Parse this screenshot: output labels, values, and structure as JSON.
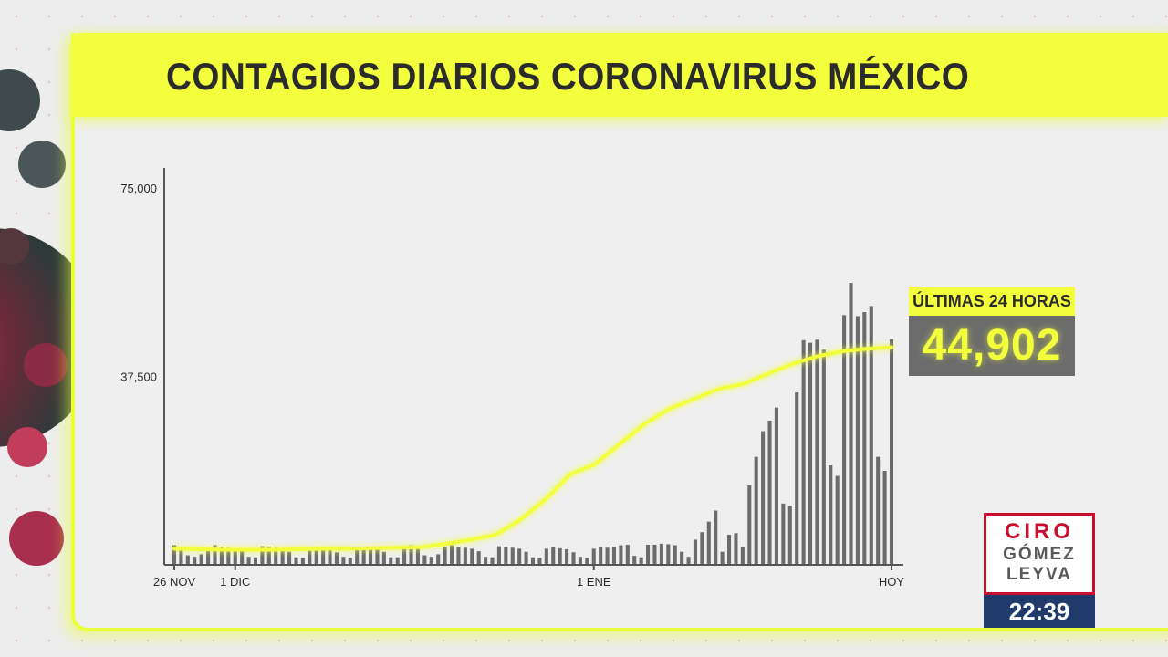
{
  "header": {
    "title": "CONTAGIOS DIARIOS CORONAVIRUS MÉXICO"
  },
  "callout": {
    "label": "ÚLTIMAS 24 HORAS",
    "value": "44,902"
  },
  "logo": {
    "line1": "CIRO",
    "line2": "GÓMEZ",
    "line3": "LEYVA"
  },
  "clock": {
    "time": "22:39"
  },
  "colors": {
    "accent": "#f3ff3c",
    "bars": "#6b6b6b",
    "brand_red": "#c8102e",
    "clock_bg": "#1f3a6b"
  },
  "icons": {
    "decoration": "coronavirus-icon"
  },
  "chart_data": {
    "type": "bar",
    "title": "CONTAGIOS DIARIOS CORONAVIRUS MÉXICO",
    "xlabel": "",
    "ylabel": "",
    "ylim": [
      0,
      75000
    ],
    "y_ticks": [
      {
        "value": 75000,
        "label": "75,000"
      },
      {
        "value": 37500,
        "label": "37,500"
      }
    ],
    "x_ticks": [
      {
        "index": 0,
        "label": "26 NOV"
      },
      {
        "index": 9,
        "label": "1 DIC"
      },
      {
        "index": 62,
        "label": "1 ENE"
      },
      {
        "index": 106,
        "label": "HOY"
      }
    ],
    "grid": false,
    "legend": "none",
    "series": [
      {
        "type": "bar",
        "values": [
          3900,
          3500,
          1900,
          1600,
          2100,
          3500,
          3900,
          3600,
          3400,
          3200,
          2700,
          1600,
          1500,
          3700,
          3600,
          3400,
          3200,
          2600,
          1500,
          1400,
          3200,
          3500,
          3300,
          3100,
          2500,
          1600,
          1400,
          3200,
          3500,
          3400,
          3600,
          3900,
          4000,
          1800,
          1500,
          4000,
          4000,
          4200,
          4100,
          3900,
          2600,
          1600,
          5000,
          6500,
          8600,
          10800,
          2600,
          6000,
          6300,
          3500,
          15800,
          21500,
          26600,
          28700,
          31300,
          12200,
          11800,
          34300,
          44700,
          44200,
          44800,
          42800,
          19800,
          17700,
          49700,
          56100,
          49500,
          50300,
          51500,
          21500,
          18700,
          44902
        ],
        "start_index": 35
      },
      {
        "type": "line",
        "values": [
          3200,
          3100,
          3000,
          3000,
          3000,
          3100,
          3200,
          3200,
          3300,
          3400,
          3500,
          4200,
          5000,
          6000,
          9000,
          13000,
          18000,
          20000,
          24000,
          28000,
          31000,
          33000,
          35000,
          36000,
          38000,
          40000,
          41500,
          42500,
          43000,
          43300
        ]
      }
    ],
    "bars_prefix": [
      3900,
      3500,
      1900,
      1600,
      2100,
      3500,
      3900,
      3600,
      3400,
      3200,
      2700,
      1600,
      1500,
      3700,
      3600,
      3400,
      3200,
      2600,
      1500,
      1400,
      3200,
      3500,
      3300,
      3100,
      2500,
      1600,
      1400,
      3200,
      3500,
      3400,
      3100,
      2600,
      1500,
      1500,
      3300
    ]
  }
}
